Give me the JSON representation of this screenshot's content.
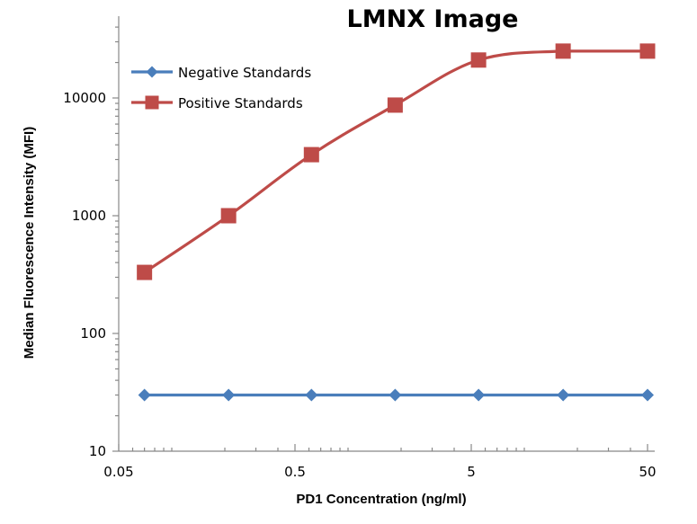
{
  "chart_data": {
    "type": "line",
    "title": "LMNX Image",
    "xlabel": "PD1 Concentration  (ng/ml)",
    "ylabel": "Median Fluorescence Intensity (MFI)",
    "xscale": "log",
    "yscale": "log",
    "xlim": [
      0.05,
      50
    ],
    "ylim": [
      10,
      40000
    ],
    "xticks": [
      0.05,
      0.5,
      5,
      50
    ],
    "xtick_labels": [
      "0.05",
      "0.5",
      "5",
      "50"
    ],
    "yticks": [
      10,
      100,
      1000,
      10000
    ],
    "ytick_labels": [
      "10",
      "100",
      "1000",
      "10000"
    ],
    "legend_position": "top-left",
    "grid": false,
    "x": [
      0.07,
      0.21,
      0.62,
      1.85,
      5.5,
      16.6,
      50
    ],
    "series": [
      {
        "name": "Negative Standards",
        "color": "#4a7ebb",
        "marker": "diamond",
        "values": [
          30,
          30,
          30,
          30,
          30,
          30,
          30
        ]
      },
      {
        "name": "Positive Standards",
        "color": "#be4b48",
        "marker": "square",
        "values": [
          330,
          1000,
          3300,
          8700,
          21000,
          25000,
          25000
        ]
      }
    ]
  }
}
